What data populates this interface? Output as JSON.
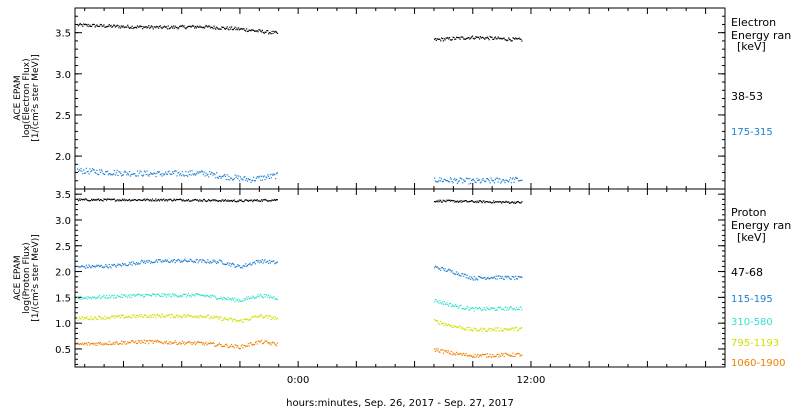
{
  "xlabel": "hours:minutes, Sep. 26, 2017 - Sep. 27, 2017",
  "x_ticks": [
    {
      "label": "0:00",
      "hour": 0
    },
    {
      "label": "12:00",
      "hour": 12
    }
  ],
  "chart_data": [
    {
      "type": "scatter",
      "id": "electron",
      "ylabel": [
        "ACE EPAM",
        "log(Electron Flux)",
        "[1/(cm²s ster MeV)]"
      ],
      "xlim_hours": [
        -11.5,
        22
      ],
      "ylim": [
        1.6,
        3.8
      ],
      "y_ticks": [
        2.0,
        2.5,
        3.0,
        3.5
      ],
      "y_tick_labels": [
        "2.0",
        "2.5",
        "3.0",
        "3.5"
      ],
      "legend_title": [
        "Electron",
        "Energy ran",
        "[keV]"
      ],
      "series": [
        {
          "name": "38-53",
          "color": "#000000",
          "segments": [
            {
              "start": -11.4,
              "end": -1.1,
              "points": [
                [
                  -11.4,
                  3.6
                ],
                [
                  -9,
                  3.58
                ],
                [
                  -7,
                  3.57
                ],
                [
                  -5,
                  3.58
                ],
                [
                  -3,
                  3.55
                ],
                [
                  -1.1,
                  3.5
                ]
              ]
            },
            {
              "start": 7.0,
              "end": 11.5,
              "points": [
                [
                  7.0,
                  3.42
                ],
                [
                  9,
                  3.45
                ],
                [
                  11.5,
                  3.42
                ]
              ]
            }
          ]
        },
        {
          "name": "175-315",
          "color": "#1e7fd0",
          "segments": [
            {
              "start": -11.4,
              "end": -1.1,
              "points": [
                [
                  -11.4,
                  1.83
                ],
                [
                  -9,
                  1.8
                ],
                [
                  -7,
                  1.79
                ],
                [
                  -5,
                  1.8
                ],
                [
                  -3.5,
                  1.75
                ],
                [
                  -2.5,
                  1.72
                ],
                [
                  -1.1,
                  1.77
                ]
              ]
            },
            {
              "start": 7.0,
              "end": 11.5,
              "points": [
                [
                  7.0,
                  1.72
                ],
                [
                  9,
                  1.7
                ],
                [
                  11.5,
                  1.72
                ]
              ]
            }
          ]
        }
      ]
    },
    {
      "type": "scatter",
      "id": "proton",
      "ylabel": [
        "ACE EPAM",
        "log(Proton Flux)",
        "[1/(cm²s ster MeV)]"
      ],
      "xlim_hours": [
        -11.5,
        22
      ],
      "ylim": [
        0.15,
        3.6
      ],
      "y_ticks": [
        0.5,
        1.0,
        1.5,
        2.0,
        2.5,
        3.0,
        3.5
      ],
      "y_tick_labels": [
        "0.5",
        "1.0",
        "1.5",
        "2.0",
        "2.5",
        "3.0",
        "3.5"
      ],
      "legend_title": [
        "Proton",
        "Energy ran",
        "[keV]"
      ],
      "series": [
        {
          "name": "47-68",
          "color": "#000000",
          "segments": [
            {
              "start": -11.4,
              "end": -1.1,
              "points": [
                [
                  -11.4,
                  3.4
                ],
                [
                  -6,
                  3.4
                ],
                [
                  -3,
                  3.38
                ],
                [
                  -1.1,
                  3.4
                ]
              ]
            },
            {
              "start": 7.0,
              "end": 11.5,
              "points": [
                [
                  7.0,
                  3.38
                ],
                [
                  11.5,
                  3.35
                ]
              ]
            }
          ]
        },
        {
          "name": "115-195",
          "color": "#1e7fd0",
          "segments": [
            {
              "start": -11.4,
              "end": -1.1,
              "points": [
                [
                  -11.4,
                  2.1
                ],
                [
                  -9.5,
                  2.12
                ],
                [
                  -8,
                  2.2
                ],
                [
                  -6,
                  2.22
                ],
                [
                  -4,
                  2.2
                ],
                [
                  -3,
                  2.1
                ],
                [
                  -2,
                  2.22
                ],
                [
                  -1.1,
                  2.18
                ]
              ]
            },
            {
              "start": 7.0,
              "end": 11.5,
              "points": [
                [
                  7.0,
                  2.1
                ],
                [
                  8,
                  2.0
                ],
                [
                  9,
                  1.88
                ],
                [
                  10,
                  1.9
                ],
                [
                  11.5,
                  1.88
                ]
              ]
            }
          ]
        },
        {
          "name": "310-580",
          "color": "#33e0d0",
          "segments": [
            {
              "start": -11.4,
              "end": -1.1,
              "points": [
                [
                  -11.4,
                  1.5
                ],
                [
                  -8,
                  1.55
                ],
                [
                  -5,
                  1.55
                ],
                [
                  -3,
                  1.45
                ],
                [
                  -2,
                  1.55
                ],
                [
                  -1.1,
                  1.5
                ]
              ]
            },
            {
              "start": 7.0,
              "end": 11.5,
              "points": [
                [
                  7.0,
                  1.45
                ],
                [
                  8,
                  1.35
                ],
                [
                  9,
                  1.28
                ],
                [
                  11.5,
                  1.3
                ]
              ]
            }
          ]
        },
        {
          "name": "795-1193",
          "color": "#d0e000",
          "segments": [
            {
              "start": -11.4,
              "end": -1.1,
              "points": [
                [
                  -11.4,
                  1.1
                ],
                [
                  -8,
                  1.15
                ],
                [
                  -5,
                  1.15
                ],
                [
                  -3,
                  1.05
                ],
                [
                  -2,
                  1.15
                ],
                [
                  -1.1,
                  1.1
                ]
              ]
            },
            {
              "start": 7.0,
              "end": 11.5,
              "points": [
                [
                  7.0,
                  1.05
                ],
                [
                  8,
                  0.95
                ],
                [
                  9,
                  0.88
                ],
                [
                  11.5,
                  0.9
                ]
              ]
            }
          ]
        },
        {
          "name": "1060-1900",
          "color": "#f08000",
          "segments": [
            {
              "start": -11.4,
              "end": -1.1,
              "points": [
                [
                  -11.4,
                  0.6
                ],
                [
                  -8,
                  0.65
                ],
                [
                  -5,
                  0.62
                ],
                [
                  -3,
                  0.55
                ],
                [
                  -2,
                  0.65
                ],
                [
                  -1.1,
                  0.6
                ]
              ]
            },
            {
              "start": 7.0,
              "end": 11.5,
              "points": [
                [
                  7.0,
                  0.5
                ],
                [
                  8,
                  0.42
                ],
                [
                  9,
                  0.38
                ],
                [
                  11.5,
                  0.4
                ]
              ]
            }
          ]
        }
      ]
    }
  ]
}
